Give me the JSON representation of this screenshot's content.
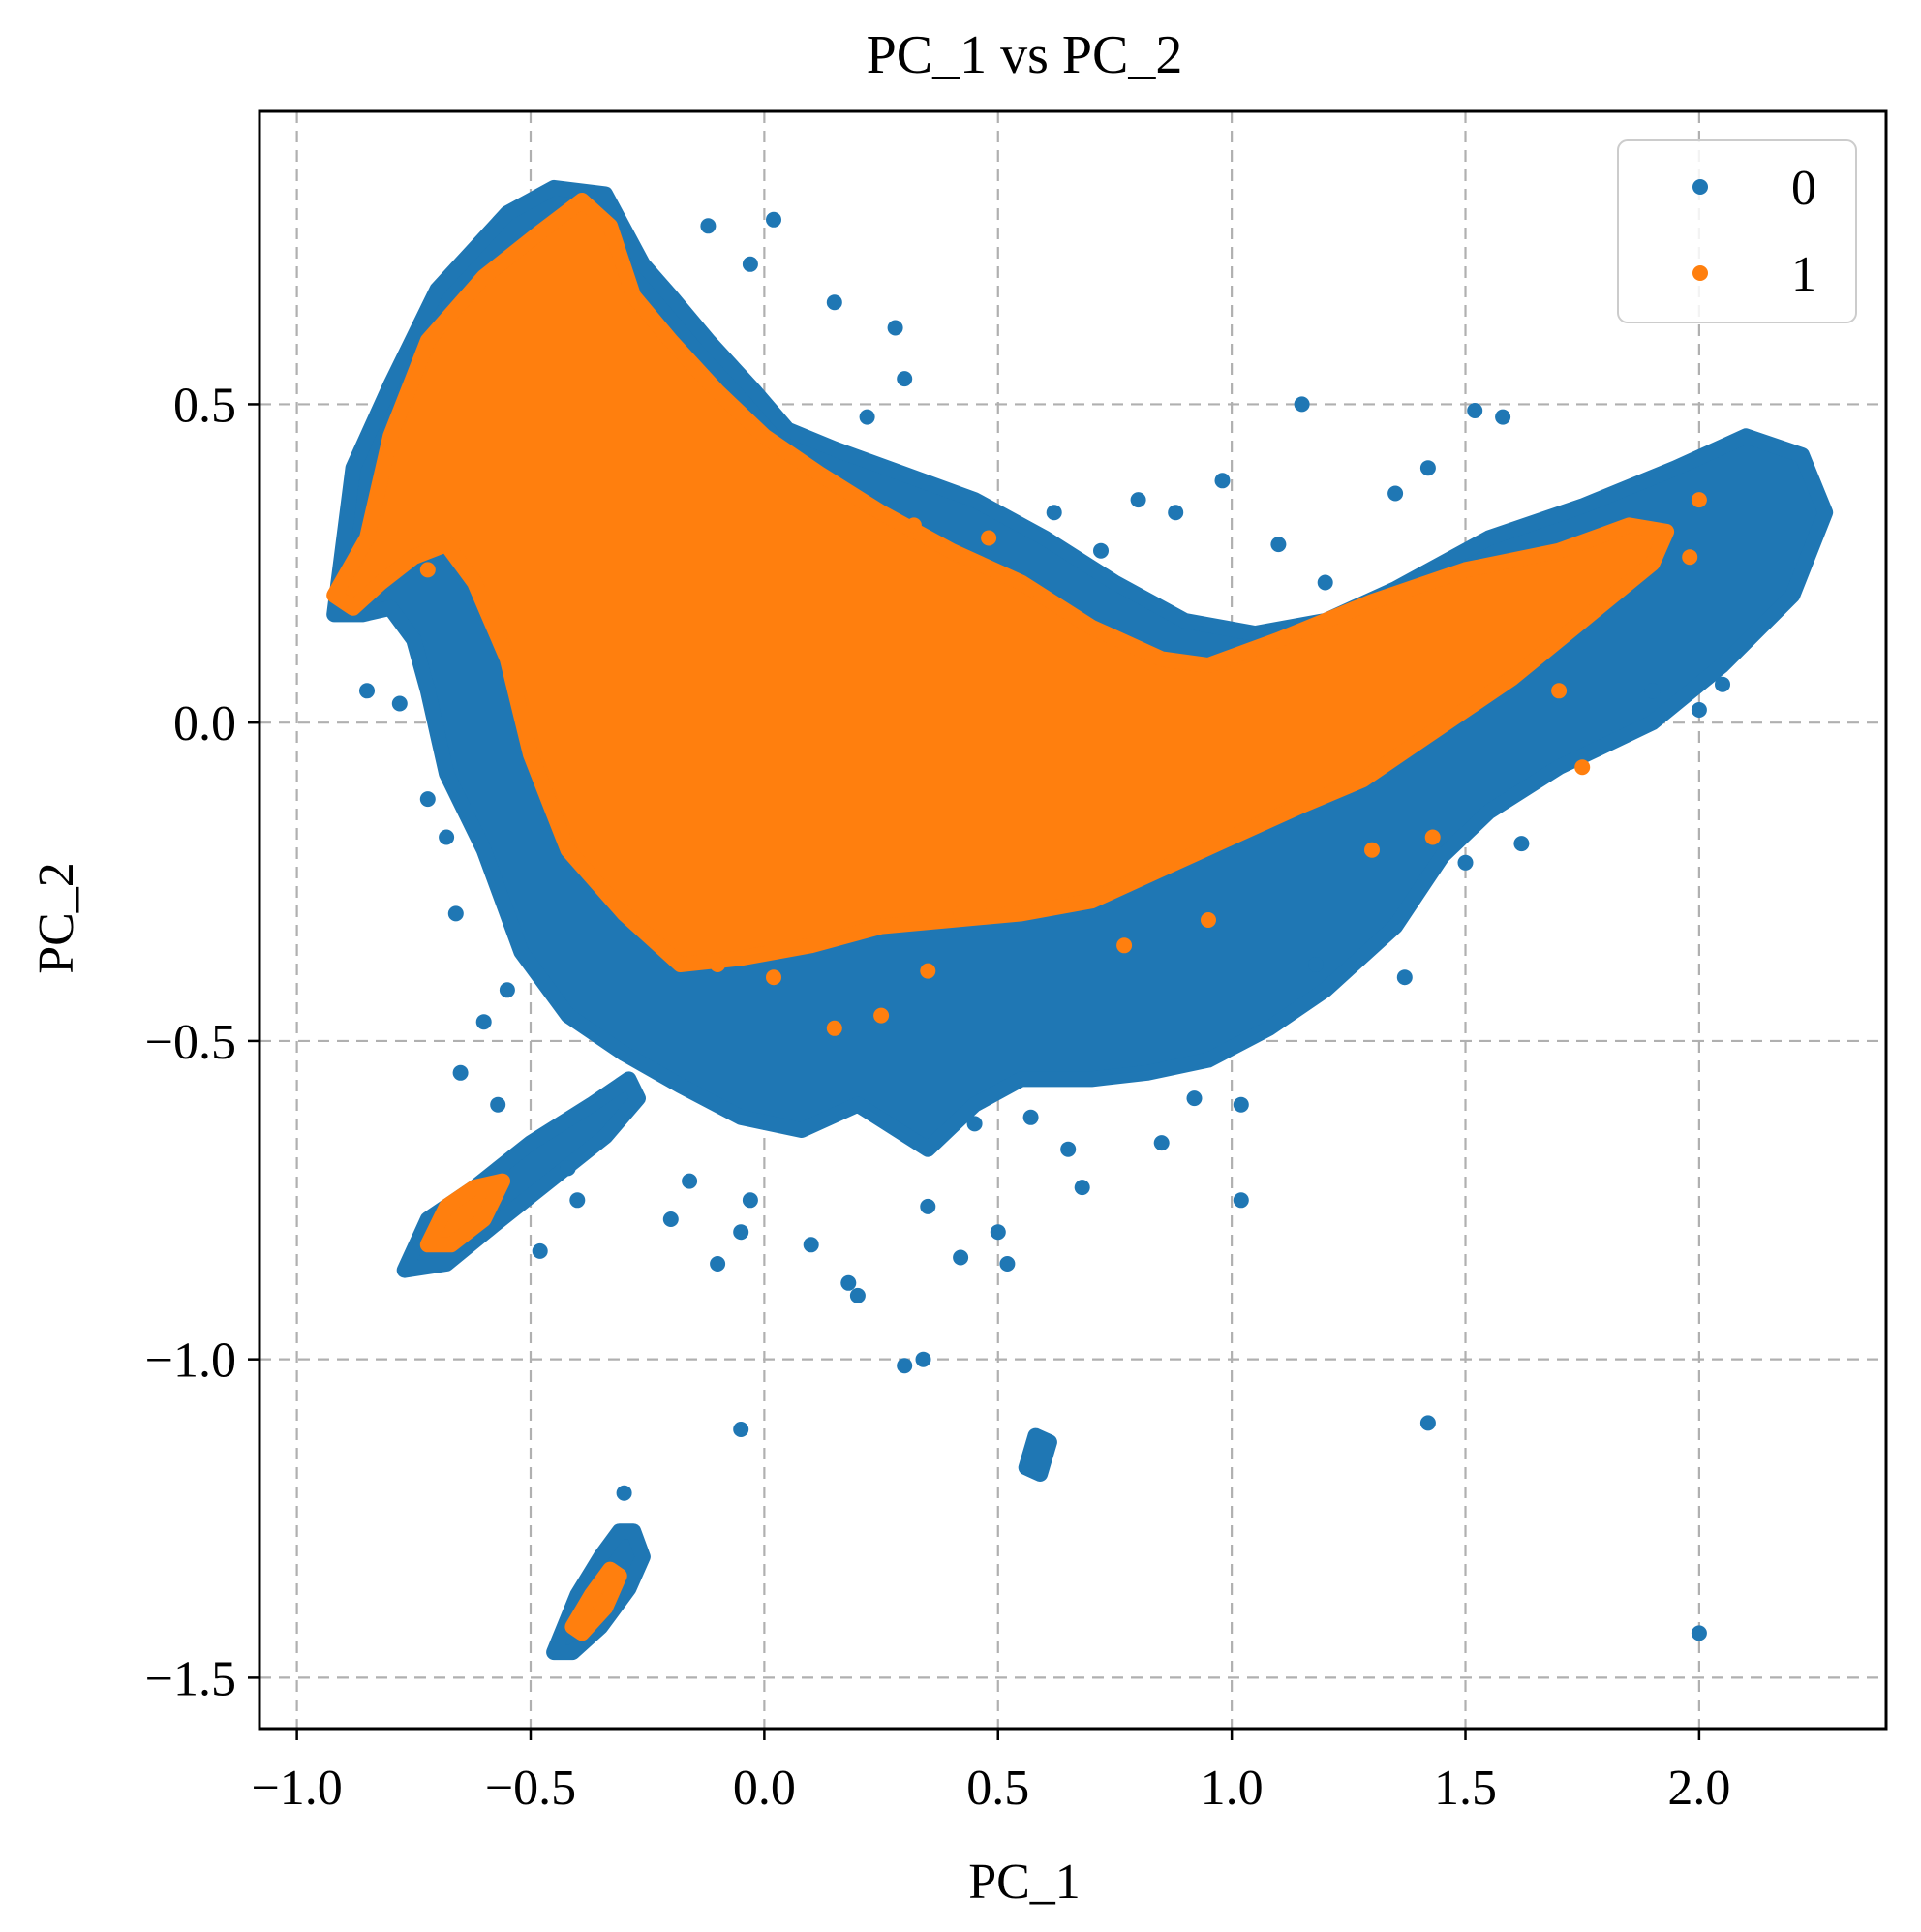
{
  "chart_data": {
    "type": "scatter",
    "title": "PC_1 vs PC_2",
    "xlabel": "PC_1",
    "ylabel": "PC_2",
    "xlim": [
      -1.08,
      2.4
    ],
    "ylim": [
      -1.58,
      0.96
    ],
    "xticks": [
      -1.0,
      -0.5,
      0.0,
      0.5,
      1.0,
      1.5,
      2.0
    ],
    "xtick_labels": [
      "−1.0",
      "−0.5",
      "0.0",
      "0.5",
      "1.0",
      "1.5",
      "2.0"
    ],
    "yticks": [
      0.5,
      0.0,
      -0.5,
      -1.0,
      -1.5
    ],
    "ytick_labels": [
      "0.5",
      "0.0",
      "−0.5",
      "−1.0",
      "−1.5"
    ],
    "grid": true,
    "grid_style": "dashed",
    "legend_position": "top-right",
    "series": [
      {
        "name": "0",
        "color": "#1f77b4",
        "regions": [
          [
            [
              -0.92,
              0.17
            ],
            [
              -0.88,
              0.4
            ],
            [
              -0.8,
              0.53
            ],
            [
              -0.7,
              0.68
            ],
            [
              -0.55,
              0.8
            ],
            [
              -0.45,
              0.84
            ],
            [
              -0.34,
              0.83
            ],
            [
              -0.26,
              0.72
            ],
            [
              -0.2,
              0.67
            ],
            [
              -0.12,
              0.6
            ],
            [
              -0.02,
              0.52
            ],
            [
              0.05,
              0.46
            ],
            [
              0.15,
              0.43
            ],
            [
              0.3,
              0.39
            ],
            [
              0.45,
              0.35
            ],
            [
              0.6,
              0.29
            ],
            [
              0.75,
              0.22
            ],
            [
              0.9,
              0.16
            ],
            [
              1.05,
              0.14
            ],
            [
              1.2,
              0.16
            ],
            [
              1.35,
              0.21
            ],
            [
              1.55,
              0.29
            ],
            [
              1.75,
              0.34
            ],
            [
              1.95,
              0.4
            ],
            [
              2.1,
              0.45
            ],
            [
              2.22,
              0.42
            ],
            [
              2.27,
              0.33
            ],
            [
              2.2,
              0.2
            ],
            [
              2.05,
              0.09
            ],
            [
              1.9,
              0.0
            ],
            [
              1.7,
              -0.07
            ],
            [
              1.55,
              -0.14
            ],
            [
              1.45,
              -0.21
            ],
            [
              1.35,
              -0.32
            ],
            [
              1.2,
              -0.42
            ],
            [
              1.08,
              -0.48
            ],
            [
              0.95,
              -0.53
            ],
            [
              0.82,
              -0.55
            ],
            [
              0.7,
              -0.56
            ],
            [
              0.55,
              -0.56
            ],
            [
              0.45,
              -0.6
            ],
            [
              0.35,
              -0.67
            ],
            [
              0.2,
              -0.6
            ],
            [
              0.08,
              -0.64
            ],
            [
              -0.05,
              -0.62
            ],
            [
              -0.18,
              -0.57
            ],
            [
              -0.3,
              -0.52
            ],
            [
              -0.42,
              -0.46
            ],
            [
              -0.52,
              -0.36
            ],
            [
              -0.6,
              -0.2
            ],
            [
              -0.68,
              -0.08
            ],
            [
              -0.72,
              0.05
            ],
            [
              -0.75,
              0.13
            ],
            [
              -0.8,
              0.18
            ],
            [
              -0.86,
              0.17
            ]
          ],
          [
            [
              -0.77,
              -0.86
            ],
            [
              -0.72,
              -0.78
            ],
            [
              -0.62,
              -0.73
            ],
            [
              -0.5,
              -0.66
            ],
            [
              -0.37,
              -0.6
            ],
            [
              -0.29,
              -0.56
            ],
            [
              -0.27,
              -0.59
            ],
            [
              -0.34,
              -0.65
            ],
            [
              -0.46,
              -0.72
            ],
            [
              -0.58,
              -0.79
            ],
            [
              -0.68,
              -0.85
            ]
          ],
          [
            [
              -0.45,
              -1.46
            ],
            [
              -0.4,
              -1.37
            ],
            [
              -0.35,
              -1.31
            ],
            [
              -0.31,
              -1.27
            ],
            [
              -0.28,
              -1.27
            ],
            [
              -0.26,
              -1.31
            ],
            [
              -0.29,
              -1.36
            ],
            [
              -0.35,
              -1.42
            ],
            [
              -0.41,
              -1.46
            ]
          ],
          [
            [
              0.56,
              -1.17
            ],
            [
              0.58,
              -1.12
            ],
            [
              0.61,
              -1.13
            ],
            [
              0.59,
              -1.18
            ]
          ]
        ],
        "points": [
          [
            0.02,
            0.79
          ],
          [
            -0.03,
            0.72
          ],
          [
            0.15,
            0.66
          ],
          [
            0.3,
            0.54
          ],
          [
            0.28,
            0.62
          ],
          [
            1.15,
            0.5
          ],
          [
            1.52,
            0.49
          ],
          [
            1.58,
            0.48
          ],
          [
            1.42,
            0.4
          ],
          [
            1.35,
            0.36
          ],
          [
            0.98,
            0.38
          ],
          [
            1.2,
            0.22
          ],
          [
            -0.12,
            0.78
          ],
          [
            0.22,
            0.48
          ],
          [
            0.62,
            0.33
          ],
          [
            0.88,
            0.33
          ],
          [
            -0.78,
            0.03
          ],
          [
            -0.68,
            -0.18
          ],
          [
            -0.66,
            -0.3
          ],
          [
            -0.6,
            -0.47
          ],
          [
            -0.55,
            -0.42
          ],
          [
            -0.65,
            -0.55
          ],
          [
            -0.57,
            -0.6
          ],
          [
            -0.48,
            -0.83
          ],
          [
            -0.4,
            -0.75
          ],
          [
            -0.16,
            -0.72
          ],
          [
            -0.03,
            -0.75
          ],
          [
            -0.2,
            -0.78
          ],
          [
            -0.05,
            -0.8
          ],
          [
            0.1,
            -0.82
          ],
          [
            0.18,
            -0.88
          ],
          [
            0.2,
            -0.9
          ],
          [
            0.3,
            -1.01
          ],
          [
            0.34,
            -1.0
          ],
          [
            0.35,
            -0.76
          ],
          [
            0.5,
            -0.8
          ],
          [
            0.52,
            -0.85
          ],
          [
            0.65,
            -0.67
          ],
          [
            0.68,
            -0.73
          ],
          [
            0.85,
            -0.66
          ],
          [
            0.92,
            -0.59
          ],
          [
            1.02,
            -0.6
          ],
          [
            1.02,
            -0.75
          ],
          [
            1.42,
            -1.1
          ],
          [
            2.0,
            -1.43
          ],
          [
            -0.05,
            -1.11
          ],
          [
            -0.3,
            -1.21
          ],
          [
            0.57,
            -0.62
          ],
          [
            0.45,
            -0.63
          ],
          [
            1.37,
            -0.4
          ],
          [
            1.5,
            -0.22
          ],
          [
            2.05,
            0.06
          ],
          [
            2.0,
            0.02
          ],
          [
            1.9,
            0.05
          ],
          [
            1.62,
            -0.19
          ],
          [
            0.72,
            0.27
          ],
          [
            0.8,
            0.35
          ],
          [
            1.1,
            0.28
          ],
          [
            -0.85,
            0.05
          ],
          [
            -0.72,
            -0.12
          ],
          [
            -0.42,
            -0.7
          ],
          [
            -0.1,
            -0.85
          ],
          [
            0.42,
            -0.84
          ],
          [
            1.18,
            -0.38
          ]
        ]
      },
      {
        "name": "1",
        "color": "#ff7f0e",
        "regions": [
          [
            [
              -0.92,
              0.2
            ],
            [
              -0.85,
              0.29
            ],
            [
              -0.8,
              0.45
            ],
            [
              -0.72,
              0.6
            ],
            [
              -0.6,
              0.7
            ],
            [
              -0.48,
              0.77
            ],
            [
              -0.39,
              0.82
            ],
            [
              -0.33,
              0.78
            ],
            [
              -0.28,
              0.67
            ],
            [
              -0.2,
              0.6
            ],
            [
              -0.1,
              0.52
            ],
            [
              0.0,
              0.45
            ],
            [
              0.12,
              0.39
            ],
            [
              0.25,
              0.33
            ],
            [
              0.4,
              0.27
            ],
            [
              0.55,
              0.22
            ],
            [
              0.7,
              0.15
            ],
            [
              0.85,
              0.1
            ],
            [
              0.95,
              0.09
            ],
            [
              1.1,
              0.13
            ],
            [
              1.3,
              0.19
            ],
            [
              1.5,
              0.24
            ],
            [
              1.7,
              0.27
            ],
            [
              1.85,
              0.31
            ],
            [
              1.93,
              0.3
            ],
            [
              1.9,
              0.25
            ],
            [
              1.75,
              0.16
            ],
            [
              1.6,
              0.07
            ],
            [
              1.42,
              -0.02
            ],
            [
              1.28,
              -0.09
            ],
            [
              1.15,
              -0.13
            ],
            [
              1.0,
              -0.18
            ],
            [
              0.85,
              -0.23
            ],
            [
              0.7,
              -0.28
            ],
            [
              0.55,
              -0.3
            ],
            [
              0.4,
              -0.31
            ],
            [
              0.25,
              -0.32
            ],
            [
              0.1,
              -0.35
            ],
            [
              -0.05,
              -0.37
            ],
            [
              -0.18,
              -0.38
            ],
            [
              -0.3,
              -0.3
            ],
            [
              -0.42,
              -0.2
            ],
            [
              -0.5,
              -0.05
            ],
            [
              -0.55,
              0.1
            ],
            [
              -0.62,
              0.22
            ],
            [
              -0.68,
              0.28
            ],
            [
              -0.75,
              0.26
            ],
            [
              -0.82,
              0.22
            ],
            [
              -0.88,
              0.18
            ]
          ],
          [
            [
              -0.72,
              -0.82
            ],
            [
              -0.68,
              -0.76
            ],
            [
              -0.62,
              -0.73
            ],
            [
              -0.56,
              -0.72
            ],
            [
              -0.6,
              -0.78
            ],
            [
              -0.67,
              -0.82
            ]
          ],
          [
            [
              -0.41,
              -1.42
            ],
            [
              -0.37,
              -1.37
            ],
            [
              -0.33,
              -1.33
            ],
            [
              -0.31,
              -1.34
            ],
            [
              -0.34,
              -1.39
            ],
            [
              -0.39,
              -1.43
            ]
          ]
        ],
        "points": [
          [
            -0.72,
            0.24
          ],
          [
            0.15,
            -0.48
          ],
          [
            0.25,
            -0.46
          ],
          [
            0.35,
            -0.39
          ],
          [
            0.48,
            0.29
          ],
          [
            0.57,
            0.21
          ],
          [
            0.77,
            -0.35
          ],
          [
            0.95,
            -0.31
          ],
          [
            1.3,
            -0.2
          ],
          [
            1.43,
            -0.18
          ],
          [
            1.75,
            -0.07
          ],
          [
            1.7,
            0.05
          ],
          [
            2.0,
            0.35
          ],
          [
            1.98,
            0.26
          ],
          [
            0.32,
            0.31
          ],
          [
            0.42,
            -0.3
          ],
          [
            0.02,
            -0.4
          ],
          [
            -0.1,
            -0.38
          ]
        ]
      }
    ]
  }
}
